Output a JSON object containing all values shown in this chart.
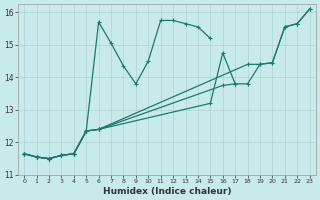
{
  "xlabel": "Humidex (Indice chaleur)",
  "bg_color": "#c8eaea",
  "grid_color": "#aed4d0",
  "line_color": "#1a7a6e",
  "xlim": [
    -0.5,
    23.5
  ],
  "ylim": [
    11,
    16.25
  ],
  "yticks": [
    11,
    12,
    13,
    14,
    15,
    16
  ],
  "xticks": [
    0,
    1,
    2,
    3,
    4,
    5,
    6,
    7,
    8,
    9,
    10,
    11,
    12,
    13,
    14,
    15,
    16,
    17,
    18,
    19,
    20,
    21,
    22,
    23
  ],
  "lines": [
    {
      "x": [
        0,
        1,
        2,
        3,
        4,
        5,
        6,
        7,
        8,
        9,
        10,
        11,
        12,
        13,
        14,
        15
      ],
      "y": [
        11.65,
        11.55,
        11.5,
        11.6,
        11.65,
        12.35,
        15.7,
        15.05,
        14.35,
        13.8,
        14.5,
        15.75,
        15.75,
        15.65,
        15.55,
        15.2
      ]
    },
    {
      "x": [
        0,
        1,
        2,
        3,
        4,
        5,
        6,
        16,
        17
      ],
      "y": [
        11.65,
        11.55,
        11.5,
        11.6,
        11.65,
        12.35,
        12.4,
        13.75,
        13.8
      ]
    },
    {
      "x": [
        0,
        1,
        2,
        3,
        4,
        5,
        6,
        18,
        19,
        20,
        21,
        22,
        23
      ],
      "y": [
        11.65,
        11.55,
        11.5,
        11.6,
        11.65,
        12.35,
        12.4,
        14.4,
        14.4,
        14.45,
        15.55,
        15.65,
        16.1
      ]
    },
    {
      "x": [
        0,
        1,
        2,
        3,
        4,
        5,
        6,
        15,
        16,
        17,
        18,
        19,
        20,
        21,
        22,
        23
      ],
      "y": [
        11.65,
        11.55,
        11.5,
        11.6,
        11.65,
        12.35,
        12.4,
        13.2,
        14.75,
        13.8,
        13.8,
        14.4,
        14.45,
        15.55,
        15.65,
        16.1
      ]
    }
  ]
}
